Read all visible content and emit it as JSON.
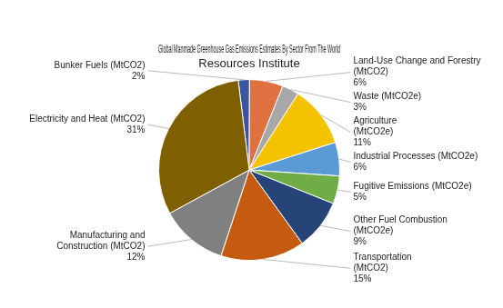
{
  "chart_data": {
    "type": "pie",
    "title": "Global Manmade Greenhouse Gas Emissions Estimates By Sector From The World\nResources Institute",
    "categories": [
      "Bunker Fuels (MtCO2)",
      "Land-Use Change and Forestry\n(MtCO2)",
      "Waste (MtCO2e)",
      "Agriculture\n(MtCO2e)",
      "Industrial Processes (MtCO2e)",
      "Fugitive Emissions (MtCO2e)",
      "Other Fuel Combustion\n(MtCO2e)",
      "Transportation\n(MtCO2)",
      "Manufacturing and\nConstruction (MtCO2)",
      "Electricity and Heat (MtCO2)"
    ],
    "values": [
      2,
      6,
      3,
      11,
      6,
      5,
      9,
      15,
      12,
      31
    ],
    "value_labels": [
      "2%",
      "6%",
      "3%",
      "11%",
      "6%",
      "5%",
      "9%",
      "15%",
      "12%",
      "31%"
    ],
    "colors": [
      "#3B55A0",
      "#E07040",
      "#A8A8A8",
      "#F5C200",
      "#5B9BD5",
      "#70AD47",
      "#264478",
      "#C55A11",
      "#808080",
      "#7F6000"
    ],
    "data_labels": true
  }
}
